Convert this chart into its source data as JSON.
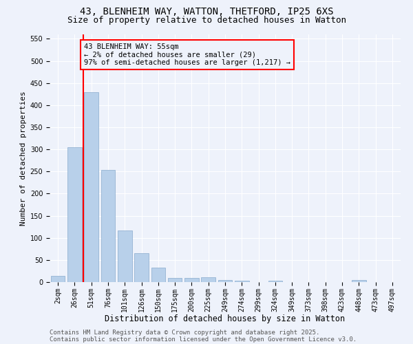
{
  "title1": "43, BLENHEIM WAY, WATTON, THETFORD, IP25 6XS",
  "title2": "Size of property relative to detached houses in Watton",
  "xlabel": "Distribution of detached houses by size in Watton",
  "ylabel": "Number of detached properties",
  "categories": [
    "2sqm",
    "26sqm",
    "51sqm",
    "76sqm",
    "101sqm",
    "126sqm",
    "150sqm",
    "175sqm",
    "200sqm",
    "225sqm",
    "249sqm",
    "274sqm",
    "299sqm",
    "324sqm",
    "349sqm",
    "373sqm",
    "398sqm",
    "423sqm",
    "448sqm",
    "473sqm",
    "497sqm"
  ],
  "values": [
    14,
    305,
    430,
    253,
    117,
    65,
    33,
    9,
    10,
    11,
    5,
    3,
    0,
    3,
    0,
    0,
    0,
    0,
    4,
    0,
    0
  ],
  "bar_color": "#b8d0ea",
  "bar_edge_color": "#88aacc",
  "vline_x": 1.5,
  "vline_color": "red",
  "annotation_box_text": "43 BLENHEIM WAY: 55sqm\n← 2% of detached houses are smaller (29)\n97% of semi-detached houses are larger (1,217) →",
  "box_edge_color": "red",
  "ylim": [
    0,
    560
  ],
  "yticks": [
    0,
    50,
    100,
    150,
    200,
    250,
    300,
    350,
    400,
    450,
    500,
    550
  ],
  "background_color": "#eef2fb",
  "grid_color": "#ffffff",
  "footer1": "Contains HM Land Registry data © Crown copyright and database right 2025.",
  "footer2": "Contains public sector information licensed under the Open Government Licence v3.0.",
  "title_fontsize": 10,
  "subtitle_fontsize": 9,
  "tick_fontsize": 7,
  "xlabel_fontsize": 8.5,
  "ylabel_fontsize": 8,
  "annotation_fontsize": 7.5,
  "footer_fontsize": 6.5
}
